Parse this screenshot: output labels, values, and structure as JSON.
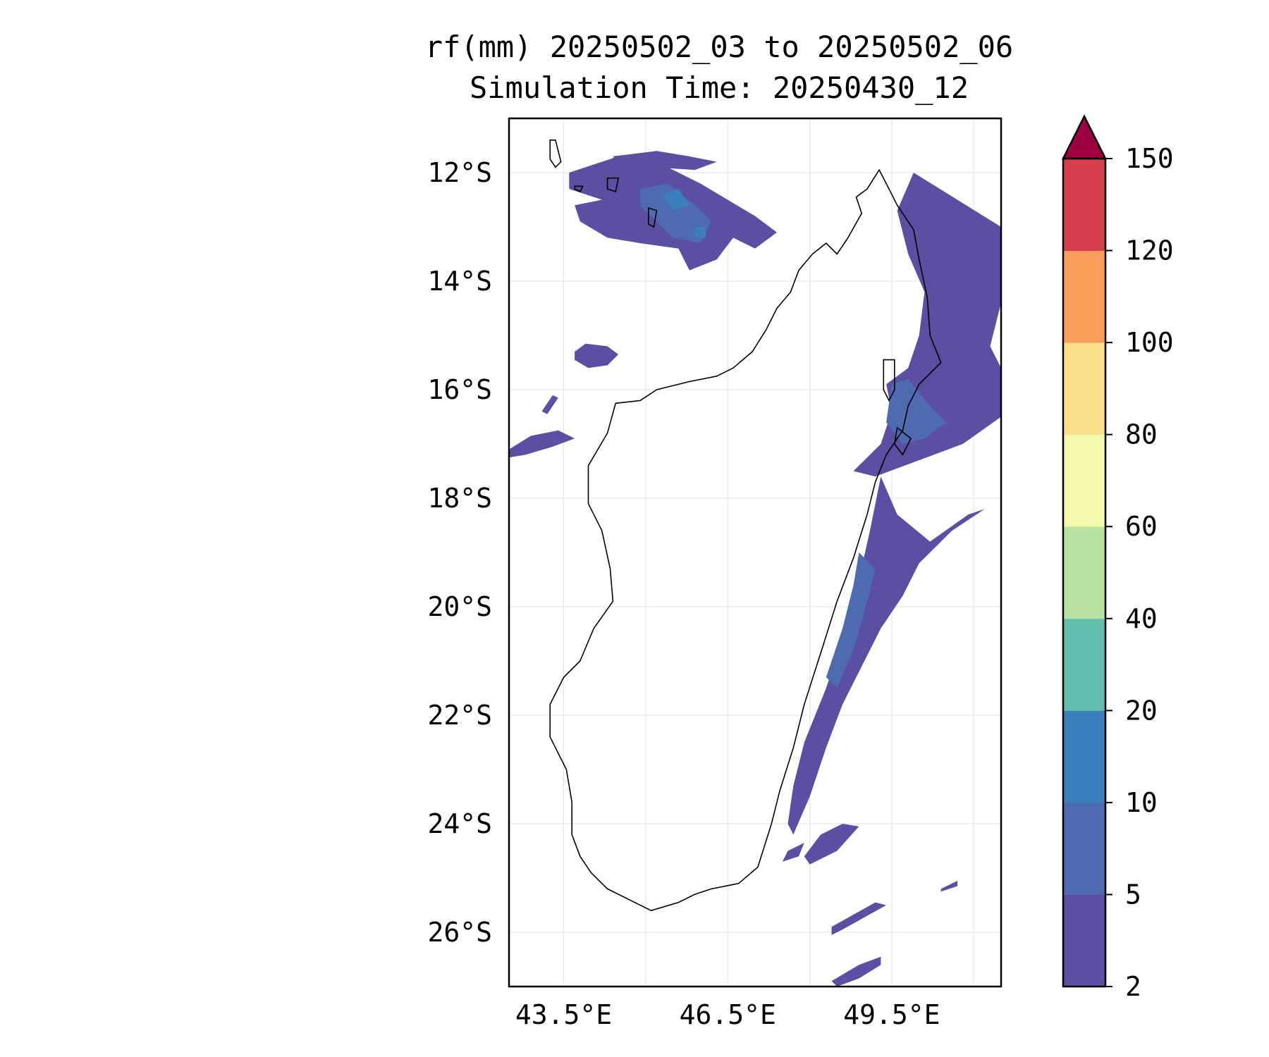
{
  "figure": {
    "title_line1": "rf(mm) 20250502_03 to 20250502_06",
    "title_line2": "Simulation Time: 20250430_12"
  },
  "chart_data": {
    "type": "heatmap",
    "title": "rf(mm) 20250502_03 to 20250502_06",
    "subtitle": "Simulation Time: 20250430_12",
    "xlim": [
      42.5,
      51.5
    ],
    "ylim": [
      -27.0,
      -11.0
    ],
    "x_ticks": [
      43.5,
      46.5,
      49.5
    ],
    "x_tick_labels": [
      "43.5°E",
      "46.5°E",
      "49.5°E"
    ],
    "y_ticks": [
      -12,
      -14,
      -16,
      -18,
      -20,
      -22,
      -24,
      -26
    ],
    "y_tick_labels": [
      "12°S",
      "14°S",
      "16°S",
      "18°S",
      "20°S",
      "22°S",
      "24°S",
      "26°S"
    ],
    "grid": true,
    "colorbar": {
      "levels": [
        2,
        5,
        10,
        20,
        40,
        60,
        80,
        100,
        120,
        150
      ],
      "tick_labels": [
        "2",
        "5",
        "10",
        "20",
        "40",
        "60",
        "80",
        "100",
        "120",
        "150"
      ],
      "colors": [
        "#5a4fa2",
        "#4e6bb2",
        "#3a7fbc",
        "#62bdac",
        "#b9e1a0",
        "#f3faad",
        "#fde08b",
        "#f99d5a",
        "#d53f4e"
      ],
      "extend_color": "#9e0142",
      "extend": "max"
    },
    "coastline_color": "#000000",
    "rain_areas": [
      {
        "name": "north-band-a",
        "level": 1,
        "points": [
          [
            43.6,
            -12.0
          ],
          [
            44.5,
            -11.7
          ],
          [
            45.4,
            -11.9
          ],
          [
            46.0,
            -12.2
          ],
          [
            46.5,
            -12.5
          ],
          [
            47.0,
            -12.8
          ],
          [
            47.4,
            -13.1
          ],
          [
            47.0,
            -13.4
          ],
          [
            46.6,
            -13.2
          ],
          [
            46.3,
            -13.6
          ],
          [
            45.8,
            -13.8
          ],
          [
            45.6,
            -13.4
          ],
          [
            44.9,
            -13.3
          ],
          [
            44.3,
            -13.2
          ],
          [
            43.8,
            -12.9
          ],
          [
            43.7,
            -12.6
          ],
          [
            44.2,
            -12.5
          ],
          [
            43.6,
            -12.3
          ]
        ]
      },
      {
        "name": "north-band-b",
        "level": 2,
        "points": [
          [
            44.9,
            -12.3
          ],
          [
            45.4,
            -12.2
          ],
          [
            45.9,
            -12.6
          ],
          [
            46.2,
            -12.9
          ],
          [
            46.0,
            -13.3
          ],
          [
            45.5,
            -13.2
          ],
          [
            45.2,
            -12.9
          ],
          [
            44.9,
            -12.6
          ]
        ]
      },
      {
        "name": "north-band-c",
        "level": 3,
        "points": [
          [
            45.3,
            -12.4
          ],
          [
            45.6,
            -12.3
          ],
          [
            45.8,
            -12.6
          ],
          [
            45.5,
            -12.7
          ]
        ]
      },
      {
        "name": "north-band-d",
        "level": 3,
        "points": [
          [
            45.9,
            -13.0
          ],
          [
            46.1,
            -13.0
          ],
          [
            46.1,
            -13.2
          ],
          [
            45.9,
            -13.2
          ]
        ]
      },
      {
        "name": "north-band-e",
        "level": 1,
        "points": [
          [
            44.4,
            -11.7
          ],
          [
            45.2,
            -11.6
          ],
          [
            45.8,
            -11.7
          ],
          [
            46.3,
            -11.8
          ],
          [
            45.9,
            -11.95
          ],
          [
            45.1,
            -11.9
          ],
          [
            44.5,
            -11.85
          ]
        ]
      },
      {
        "name": "blob-15S",
        "level": 1,
        "points": [
          [
            43.7,
            -15.3
          ],
          [
            43.9,
            -15.15
          ],
          [
            44.3,
            -15.2
          ],
          [
            44.5,
            -15.35
          ],
          [
            44.3,
            -15.55
          ],
          [
            43.95,
            -15.6
          ],
          [
            43.7,
            -15.45
          ]
        ]
      },
      {
        "name": "blob-17S",
        "level": 1,
        "points": [
          [
            42.5,
            -17.1
          ],
          [
            42.9,
            -16.85
          ],
          [
            43.4,
            -16.75
          ],
          [
            43.7,
            -16.9
          ],
          [
            43.3,
            -17.05
          ],
          [
            42.8,
            -17.2
          ],
          [
            42.5,
            -17.25
          ]
        ]
      },
      {
        "name": "blob-16S",
        "level": 1,
        "points": [
          [
            43.1,
            -16.4
          ],
          [
            43.3,
            -16.1
          ],
          [
            43.4,
            -16.15
          ],
          [
            43.2,
            -16.45
          ]
        ]
      },
      {
        "name": "ne-coast-band",
        "level": 1,
        "points": [
          [
            49.9,
            -12.0
          ],
          [
            50.7,
            -12.5
          ],
          [
            51.5,
            -13.0
          ],
          [
            51.5,
            -14.4
          ],
          [
            51.3,
            -15.2
          ],
          [
            51.5,
            -15.6
          ],
          [
            51.5,
            -16.5
          ],
          [
            50.8,
            -17.0
          ],
          [
            50.0,
            -17.3
          ],
          [
            49.2,
            -17.6
          ],
          [
            48.8,
            -17.5
          ],
          [
            49.3,
            -17.0
          ],
          [
            49.5,
            -16.4
          ],
          [
            49.4,
            -15.9
          ],
          [
            49.8,
            -15.6
          ],
          [
            50.0,
            -15.0
          ],
          [
            50.1,
            -14.2
          ],
          [
            49.8,
            -13.5
          ],
          [
            49.6,
            -12.7
          ]
        ]
      },
      {
        "name": "ne-coast-inner",
        "level": 2,
        "points": [
          [
            49.5,
            -15.9
          ],
          [
            49.8,
            -15.8
          ],
          [
            50.2,
            -16.3
          ],
          [
            50.5,
            -16.6
          ],
          [
            50.1,
            -16.9
          ],
          [
            49.7,
            -17.0
          ],
          [
            49.4,
            -16.6
          ]
        ]
      },
      {
        "name": "east-coast-band",
        "level": 1,
        "points": [
          [
            49.3,
            -17.6
          ],
          [
            49.6,
            -18.3
          ],
          [
            50.2,
            -18.8
          ],
          [
            50.9,
            -18.3
          ],
          [
            51.2,
            -18.2
          ],
          [
            50.6,
            -18.6
          ],
          [
            50.0,
            -19.2
          ],
          [
            49.7,
            -19.8
          ],
          [
            49.3,
            -20.4
          ],
          [
            48.9,
            -21.2
          ],
          [
            48.6,
            -21.8
          ],
          [
            48.3,
            -22.6
          ],
          [
            48.0,
            -23.5
          ],
          [
            47.7,
            -24.2
          ],
          [
            47.6,
            -24.0
          ],
          [
            47.7,
            -23.3
          ],
          [
            47.9,
            -22.5
          ],
          [
            48.3,
            -21.5
          ],
          [
            48.6,
            -20.6
          ],
          [
            48.9,
            -19.5
          ],
          [
            49.1,
            -18.6
          ]
        ]
      },
      {
        "name": "east-coast-inner",
        "level": 2,
        "points": [
          [
            48.9,
            -19.0
          ],
          [
            49.2,
            -19.3
          ],
          [
            49.0,
            -20.1
          ],
          [
            48.8,
            -20.8
          ],
          [
            48.5,
            -21.5
          ],
          [
            48.3,
            -21.3
          ],
          [
            48.6,
            -20.4
          ],
          [
            48.8,
            -19.6
          ]
        ]
      },
      {
        "name": "se-band-a",
        "level": 1,
        "points": [
          [
            48.2,
            -24.2
          ],
          [
            48.6,
            -24.0
          ],
          [
            48.9,
            -24.05
          ],
          [
            48.5,
            -24.5
          ],
          [
            48.0,
            -24.75
          ],
          [
            47.9,
            -24.6
          ]
        ]
      },
      {
        "name": "se-band-b",
        "level": 1,
        "points": [
          [
            47.6,
            -24.5
          ],
          [
            47.9,
            -24.35
          ],
          [
            47.8,
            -24.6
          ],
          [
            47.5,
            -24.7
          ]
        ]
      },
      {
        "name": "south-band-a",
        "level": 1,
        "points": [
          [
            48.4,
            -25.9
          ],
          [
            49.2,
            -25.45
          ],
          [
            49.4,
            -25.5
          ],
          [
            48.6,
            -25.95
          ],
          [
            48.4,
            -26.05
          ]
        ]
      },
      {
        "name": "south-band-b",
        "level": 1,
        "points": [
          [
            48.4,
            -26.9
          ],
          [
            48.9,
            -26.6
          ],
          [
            49.3,
            -26.45
          ],
          [
            49.3,
            -26.6
          ],
          [
            48.9,
            -26.85
          ],
          [
            48.5,
            -27.0
          ]
        ]
      },
      {
        "name": "east-small-a",
        "level": 1,
        "points": [
          [
            50.4,
            -25.2
          ],
          [
            50.7,
            -25.05
          ],
          [
            50.7,
            -25.15
          ],
          [
            50.4,
            -25.25
          ]
        ]
      }
    ],
    "coastline": {
      "madagascar": [
        [
          49.27,
          -11.95
        ],
        [
          49.45,
          -12.3
        ],
        [
          49.6,
          -12.6
        ],
        [
          49.9,
          -13.05
        ],
        [
          50.0,
          -13.6
        ],
        [
          50.15,
          -14.3
        ],
        [
          50.2,
          -15.0
        ],
        [
          50.4,
          -15.5
        ],
        [
          50.0,
          -15.9
        ],
        [
          49.8,
          -16.3
        ],
        [
          49.7,
          -16.75
        ],
        [
          49.4,
          -17.2
        ],
        [
          49.2,
          -17.7
        ],
        [
          49.05,
          -18.3
        ],
        [
          48.8,
          -19.1
        ],
        [
          48.5,
          -19.9
        ],
        [
          48.25,
          -20.7
        ],
        [
          47.9,
          -21.8
        ],
        [
          47.7,
          -22.6
        ],
        [
          47.45,
          -23.4
        ],
        [
          47.3,
          -24.0
        ],
        [
          47.05,
          -24.8
        ],
        [
          46.7,
          -25.1
        ],
        [
          46.2,
          -25.2
        ],
        [
          45.9,
          -25.3
        ],
        [
          45.6,
          -25.45
        ],
        [
          45.1,
          -25.6
        ],
        [
          44.7,
          -25.4
        ],
        [
          44.3,
          -25.2
        ],
        [
          44.0,
          -24.9
        ],
        [
          43.8,
          -24.6
        ],
        [
          43.65,
          -24.2
        ],
        [
          43.65,
          -23.6
        ],
        [
          43.55,
          -23.0
        ],
        [
          43.25,
          -22.4
        ],
        [
          43.25,
          -21.8
        ],
        [
          43.5,
          -21.3
        ],
        [
          43.8,
          -21.0
        ],
        [
          44.05,
          -20.4
        ],
        [
          44.4,
          -19.9
        ],
        [
          44.35,
          -19.3
        ],
        [
          44.2,
          -18.6
        ],
        [
          43.95,
          -18.1
        ],
        [
          43.95,
          -17.4
        ],
        [
          44.3,
          -16.8
        ],
        [
          44.45,
          -16.25
        ],
        [
          44.9,
          -16.2
        ],
        [
          45.2,
          -16.0
        ],
        [
          45.8,
          -15.85
        ],
        [
          46.3,
          -15.75
        ],
        [
          46.6,
          -15.6
        ],
        [
          46.95,
          -15.3
        ],
        [
          47.2,
          -14.9
        ],
        [
          47.4,
          -14.5
        ],
        [
          47.65,
          -14.2
        ],
        [
          47.8,
          -13.8
        ],
        [
          48.05,
          -13.5
        ],
        [
          48.3,
          -13.3
        ],
        [
          48.5,
          -13.5
        ],
        [
          48.7,
          -13.2
        ],
        [
          48.95,
          -12.75
        ],
        [
          48.85,
          -12.45
        ],
        [
          49.05,
          -12.3
        ],
        [
          49.27,
          -11.95
        ]
      ],
      "islands": [
        [
          [
            43.25,
            -11.4
          ],
          [
            43.35,
            -11.4
          ],
          [
            43.45,
            -11.8
          ],
          [
            43.35,
            -11.9
          ],
          [
            43.25,
            -11.75
          ]
        ],
        [
          [
            44.3,
            -12.1
          ],
          [
            44.5,
            -12.1
          ],
          [
            44.45,
            -12.35
          ],
          [
            44.3,
            -12.3
          ]
        ],
        [
          [
            43.7,
            -12.25
          ],
          [
            43.85,
            -12.25
          ],
          [
            43.8,
            -12.35
          ],
          [
            43.7,
            -12.3
          ]
        ],
        [
          [
            45.05,
            -12.65
          ],
          [
            45.2,
            -12.7
          ],
          [
            45.15,
            -13.0
          ],
          [
            45.05,
            -12.95
          ]
        ],
        [
          [
            49.35,
            -15.45
          ],
          [
            49.55,
            -15.45
          ],
          [
            49.55,
            -16.0
          ],
          [
            49.45,
            -16.2
          ],
          [
            49.35,
            -16.0
          ]
        ],
        [
          [
            49.6,
            -16.7
          ],
          [
            49.85,
            -16.9
          ],
          [
            49.7,
            -17.2
          ],
          [
            49.55,
            -17.0
          ]
        ]
      ]
    }
  }
}
